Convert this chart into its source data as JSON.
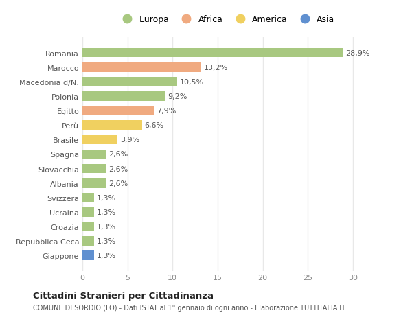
{
  "countries": [
    "Romania",
    "Marocco",
    "Macedonia d/N.",
    "Polonia",
    "Egitto",
    "Perù",
    "Brasile",
    "Spagna",
    "Slovacchia",
    "Albania",
    "Svizzera",
    "Ucraina",
    "Croazia",
    "Repubblica Ceca",
    "Giappone"
  ],
  "values": [
    28.9,
    13.2,
    10.5,
    9.2,
    7.9,
    6.6,
    3.9,
    2.6,
    2.6,
    2.6,
    1.3,
    1.3,
    1.3,
    1.3,
    1.3
  ],
  "labels": [
    "28,9%",
    "13,2%",
    "10,5%",
    "9,2%",
    "7,9%",
    "6,6%",
    "3,9%",
    "2,6%",
    "2,6%",
    "2,6%",
    "1,3%",
    "1,3%",
    "1,3%",
    "1,3%",
    "1,3%"
  ],
  "continents": [
    "Europa",
    "Africa",
    "Europa",
    "Europa",
    "Africa",
    "America",
    "America",
    "Europa",
    "Europa",
    "Europa",
    "Europa",
    "Europa",
    "Europa",
    "Europa",
    "Asia"
  ],
  "colors": {
    "Europa": "#a8c880",
    "Africa": "#f0aa80",
    "America": "#f0d060",
    "Asia": "#6090d0"
  },
  "legend_labels": [
    "Europa",
    "Africa",
    "America",
    "Asia"
  ],
  "legend_colors": [
    "#a8c880",
    "#f0aa80",
    "#f0d060",
    "#6090d0"
  ],
  "title": "Cittadini Stranieri per Cittadinanza",
  "subtitle": "COMUNE DI SORDIO (LO) - Dati ISTAT al 1° gennaio di ogni anno - Elaborazione TUTTITALIA.IT",
  "xlim": [
    0,
    32
  ],
  "xticks": [
    0,
    5,
    10,
    15,
    20,
    25,
    30
  ],
  "background_color": "#ffffff",
  "grid_color": "#e8e8e8",
  "bar_height": 0.65,
  "label_fontsize": 8,
  "tick_fontsize": 8,
  "legend_fontsize": 9
}
